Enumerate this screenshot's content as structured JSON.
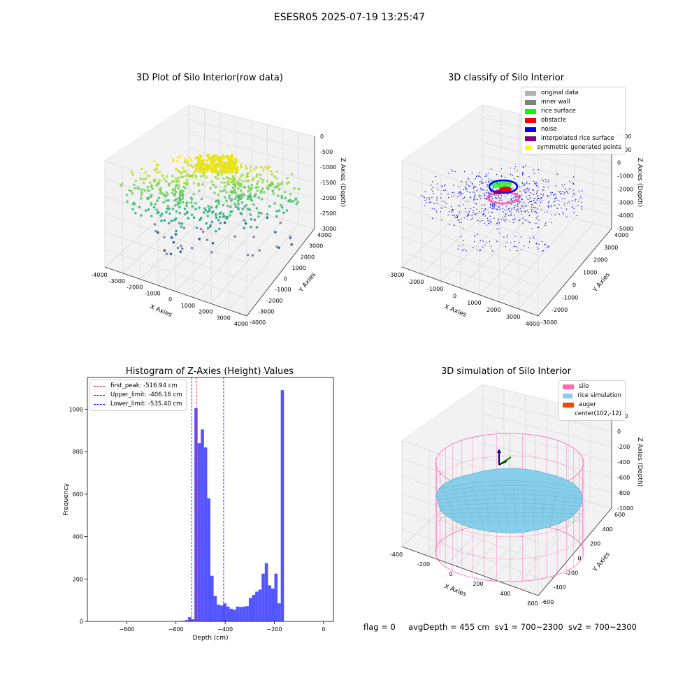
{
  "suptitle": "ESESR05 2025-07-19 13:25:47",
  "panels": {
    "raw": {
      "title": "3D Plot of Silo Interior(row data)",
      "xlabel": "X Axies",
      "ylabel": "Y Axies",
      "zlabel": "Z Axies (Depth)",
      "xticks": [
        "-4000",
        "-3000",
        "-2000",
        "-1000",
        "0",
        "1000",
        "2000",
        "3000",
        "4000"
      ],
      "yticks": [
        "4000",
        "3000",
        "2000",
        "1000",
        "0",
        "-1000",
        "-2000",
        "-3000",
        "-4000"
      ],
      "zticks": [
        "0",
        "-500",
        "-1000",
        "-1500",
        "-2000",
        "-2500",
        "-3000"
      ]
    },
    "classify": {
      "title": "3D classify of Silo Interior",
      "xlabel": "X Axies",
      "ylabel": "Y Axies",
      "zlabel": "Z Axies (Depth)",
      "xticks": [
        "-3000",
        "-2000",
        "-1000",
        "0",
        "1000",
        "2000",
        "3000",
        "4000"
      ],
      "yticks": [
        "4000",
        "3000",
        "2000",
        "1000",
        "0",
        "-1000",
        "-2000",
        "-3000"
      ],
      "zticks": [
        "2000",
        "1000",
        "0",
        "-1000",
        "-2000",
        "-3000",
        "-4000",
        "-5000"
      ],
      "legend": [
        {
          "label": "original data",
          "color": "#b3b3b3"
        },
        {
          "label": "inner wall",
          "color": "#808080"
        },
        {
          "label": "rice surface",
          "color": "#00ff00"
        },
        {
          "label": "obstacle",
          "color": "#ff0000"
        },
        {
          "label": "noise",
          "color": "#0000ff"
        },
        {
          "label": "interpolated rice surface",
          "color": "#800080"
        },
        {
          "label": "symmetric generated points",
          "color": "#ffff00"
        }
      ]
    },
    "histogram": {
      "title": "Histogram of Z-Axies (Height) Values",
      "xlabel": "Depth (cm)",
      "ylabel": "Frequency",
      "legend": [
        {
          "label": "first_peak: -516.94 cm",
          "color": "#ff0000"
        },
        {
          "label": "Upper_limit: -406.16 cm",
          "color": "#0000ff"
        },
        {
          "label": "Lower_limit: -535.40 cm",
          "color": "#0000ff"
        }
      ]
    },
    "simulation": {
      "title": "3D simulation of Silo Interior",
      "xlabel": "X Axies",
      "ylabel": "Y Axies",
      "zlabel": "Z Axies (Depth)",
      "xticks": [
        "-400",
        "-200",
        "0",
        "200",
        "400",
        "600"
      ],
      "yticks": [
        "600",
        "400",
        "200",
        "0",
        "-200",
        "-400",
        "-600"
      ],
      "zticks": [
        "200",
        "0",
        "-200",
        "-400",
        "-600",
        "-800",
        "-1000"
      ],
      "legend": [
        {
          "label": "silo",
          "color": "#ff69b4"
        },
        {
          "label": "rice simulation",
          "color": "#87ceeb"
        },
        {
          "label": "auger",
          "color": "#ff4500"
        },
        {
          "label": "center(102,-12)",
          "color": "transparent"
        }
      ]
    }
  },
  "footer": {
    "flag": "flag = 0",
    "avg": "avgDepth = 455 cm",
    "sv1": "sv1 = 700~2300",
    "sv2": "sv2 = 700~2300"
  },
  "chart_data": [
    {
      "type": "scatter",
      "title": "3D Plot of Silo Interior(row data)",
      "xlabel": "X Axies",
      "ylabel": "Y Axies",
      "zlabel": "Z Axies (Depth)",
      "xlim": [
        -4000,
        4000
      ],
      "ylim": [
        -4000,
        4000
      ],
      "zlim": [
        -3300,
        200
      ],
      "colormap": "viridis"
    },
    {
      "type": "scatter",
      "title": "3D classify of Silo Interior",
      "xlabel": "X Axies",
      "ylabel": "Y Axies",
      "zlabel": "Z Axies (Depth)",
      "xlim": [
        -3500,
        4000
      ],
      "ylim": [
        -3500,
        4000
      ],
      "zlim": [
        -5500,
        2000
      ],
      "legend_position": "top-right"
    },
    {
      "type": "bar",
      "title": "Histogram of Z-Axies (Height) Values",
      "xlabel": "Depth (cm)",
      "ylabel": "Frequency",
      "xlim": [
        -960,
        40
      ],
      "ylim": [
        0,
        1150
      ],
      "xticks": [
        -800,
        -600,
        -400,
        -200,
        0
      ],
      "yticks": [
        0,
        200,
        400,
        600,
        800,
        1000
      ],
      "bin_width": 13,
      "bin_starts": [
        -590,
        -577,
        -564,
        -551,
        -538,
        -525,
        -512,
        -499,
        -486,
        -473,
        -460,
        -447,
        -434,
        -421,
        -408,
        -395,
        -382,
        -369,
        -356,
        -343,
        -330,
        -317,
        -304,
        -291,
        -278,
        -265,
        -252,
        -239,
        -226,
        -213,
        -200,
        -187,
        -174,
        -161,
        -148,
        -135,
        -122,
        -109,
        -96,
        -83,
        -70,
        -57,
        -44,
        -31,
        -18,
        -5
      ],
      "values": [
        2,
        3,
        6,
        20,
        10,
        1005,
        840,
        905,
        820,
        580,
        215,
        120,
        80,
        75,
        85,
        70,
        60,
        55,
        70,
        68,
        70,
        72,
        110,
        125,
        140,
        150,
        225,
        275,
        170,
        155,
        225,
        85,
        1090,
        0,
        0,
        0,
        0,
        0,
        0,
        0,
        0,
        0,
        0,
        0,
        0,
        0
      ],
      "vlines": [
        {
          "x": -516.94,
          "color": "#ff0000",
          "label": "first_peak: -516.94 cm"
        },
        {
          "x": -406.16,
          "color": "#0000ff",
          "label": "Upper_limit: -406.16 cm"
        },
        {
          "x": -535.4,
          "color": "#0000ff",
          "label": "Lower_limit: -535.40 cm"
        }
      ],
      "bar_color": "#4c4cff",
      "legend_position": "top-left"
    },
    {
      "type": "surface",
      "title": "3D simulation of Silo Interior",
      "xlabel": "X Axies",
      "ylabel": "Y Axies",
      "zlabel": "Z Axies (Depth)",
      "xlim": [
        -500,
        700
      ],
      "ylim": [
        -600,
        600
      ],
      "zlim": [
        -1000,
        250
      ],
      "legend_position": "top-right"
    }
  ]
}
